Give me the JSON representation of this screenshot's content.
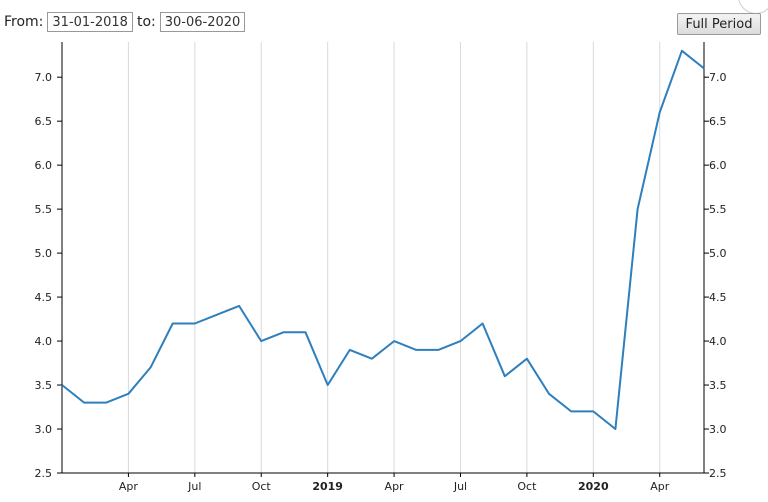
{
  "controls": {
    "from_label": "From:",
    "from_value": "31-01-2018",
    "to_label": "to:",
    "to_value": "30-06-2020",
    "full_period_label": "Full Period"
  },
  "colors": {
    "line": "#2e7fbd",
    "grid": "#d9d9d9",
    "axis": "#000000"
  },
  "chart_data": {
    "type": "line",
    "title": "",
    "xlabel": "",
    "ylabel": "",
    "ylim": [
      2.5,
      7.4
    ],
    "yticks": [
      2.5,
      3.0,
      3.5,
      4.0,
      4.5,
      5.0,
      5.5,
      6.0,
      6.5,
      7.0
    ],
    "ytick_labels": [
      "2.5",
      "3.0",
      "3.5",
      "4.0",
      "4.5",
      "5.0",
      "5.5",
      "6.0",
      "6.5",
      "7.0"
    ],
    "y_axis_both_sides": true,
    "grid": "vertical",
    "xticks": [
      {
        "label": "Apr",
        "month": "2018-04",
        "bold": false
      },
      {
        "label": "Jul",
        "month": "2018-07",
        "bold": false
      },
      {
        "label": "Oct",
        "month": "2018-10",
        "bold": false
      },
      {
        "label": "2019",
        "month": "2019-01",
        "bold": true
      },
      {
        "label": "Apr",
        "month": "2019-04",
        "bold": false
      },
      {
        "label": "Jul",
        "month": "2019-07",
        "bold": false
      },
      {
        "label": "Oct",
        "month": "2019-10",
        "bold": false
      },
      {
        "label": "2020",
        "month": "2020-01",
        "bold": true
      },
      {
        "label": "Apr",
        "month": "2020-04",
        "bold": false
      }
    ],
    "series": [
      {
        "x": [
          "2018-01",
          "2018-02",
          "2018-03",
          "2018-04",
          "2018-05",
          "2018-06",
          "2018-07",
          "2018-08",
          "2018-09",
          "2018-10",
          "2018-11",
          "2018-12",
          "2019-01",
          "2019-02",
          "2019-03",
          "2019-04",
          "2019-05",
          "2019-06",
          "2019-07",
          "2019-08",
          "2019-09",
          "2019-10",
          "2019-11",
          "2019-12",
          "2020-01",
          "2020-02",
          "2020-03",
          "2020-04",
          "2020-05",
          "2020-06"
        ],
        "values": [
          3.5,
          3.3,
          3.3,
          3.4,
          3.7,
          4.2,
          4.2,
          4.3,
          4.4,
          4.0,
          4.1,
          4.1,
          3.5,
          3.9,
          3.8,
          4.0,
          3.9,
          3.9,
          4.0,
          4.2,
          3.6,
          3.8,
          3.4,
          3.2,
          3.2,
          3.0,
          5.5,
          6.6,
          7.3,
          7.1
        ]
      }
    ]
  }
}
